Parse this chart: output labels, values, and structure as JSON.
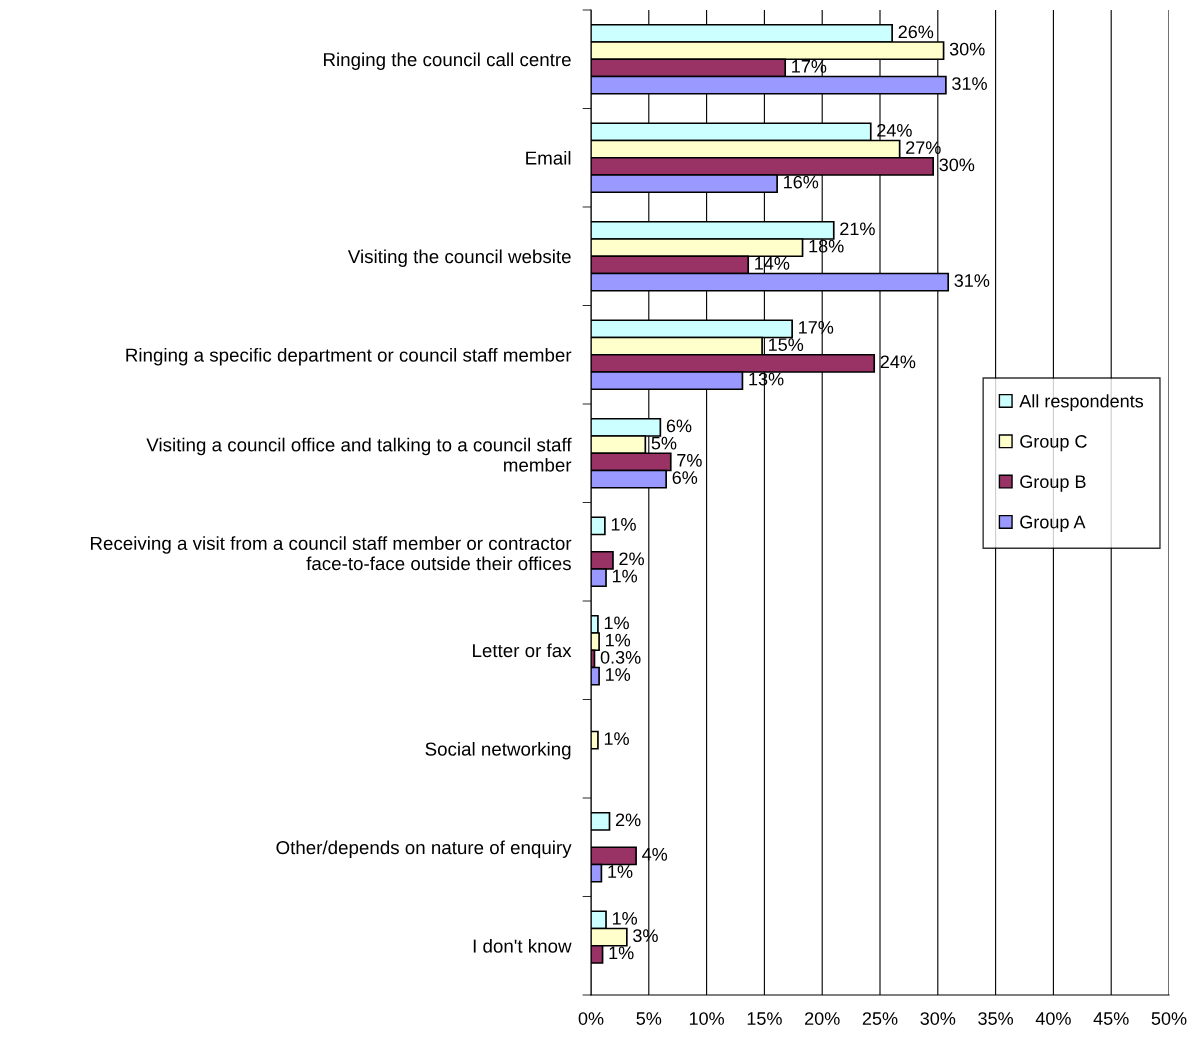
{
  "chart_data": {
    "type": "bar",
    "orientation": "horizontal",
    "categories": [
      "Ringing the council call centre",
      "Email",
      "Visiting the council website",
      "Ringing a specific department or council staff member",
      "Visiting a council office and talking to a council staff\nmember",
      "Receiving a visit from a council staff member or contractor\nface-to-face outside their offices",
      "Letter or fax",
      "Social networking",
      "Other/depends on nature of enquiry",
      "I don't know"
    ],
    "series": [
      {
        "name": "All respondents",
        "color": "#ccffff",
        "values": [
          26.05,
          24.2,
          21.0,
          17.4,
          6.0,
          1.2,
          0.6,
          null,
          1.6,
          1.3
        ],
        "value_labels": [
          "26%",
          "24%",
          "21%",
          "17%",
          "6%",
          "1%",
          "1%",
          null,
          "2%",
          "1%"
        ]
      },
      {
        "name": "Group C",
        "color": "#ffffcc",
        "values": [
          30.5,
          26.7,
          18.3,
          14.8,
          4.7,
          null,
          0.7,
          0.6,
          null,
          3.1
        ],
        "value_labels": [
          "30%",
          "27%",
          "18%",
          "15%",
          "5%",
          null,
          "1%",
          "1%",
          null,
          "3%"
        ]
      },
      {
        "name": "Group B",
        "color": "#993366",
        "values": [
          16.8,
          29.6,
          13.6,
          24.5,
          6.9,
          1.9,
          0.3,
          null,
          3.9,
          1.0
        ],
        "value_labels": [
          "17%",
          "30%",
          "14%",
          "24%",
          "7%",
          "2%",
          "0.3%",
          null,
          "4%",
          "1%"
        ]
      },
      {
        "name": "Group A",
        "color": "#9999ff",
        "values": [
          30.7,
          16.1,
          30.9,
          13.1,
          6.5,
          1.3,
          0.7,
          null,
          0.9,
          null
        ],
        "value_labels": [
          "31%",
          "16%",
          "31%",
          "13%",
          "6%",
          "1%",
          "1%",
          null,
          "1%",
          null
        ]
      }
    ],
    "xlim": [
      0,
      50
    ],
    "xticks": [
      {
        "value": 0,
        "label": "0%"
      },
      {
        "value": 5,
        "label": "5%"
      },
      {
        "value": 10,
        "label": "10%"
      },
      {
        "value": 15,
        "label": "15%"
      },
      {
        "value": 20,
        "label": "20%"
      },
      {
        "value": 25,
        "label": "25%"
      },
      {
        "value": 30,
        "label": "30%"
      },
      {
        "value": 35,
        "label": "35%"
      },
      {
        "value": 40,
        "label": "40%"
      },
      {
        "value": 45,
        "label": "45%"
      },
      {
        "value": 50,
        "label": "50%"
      }
    ],
    "grid": "x",
    "legend": "right"
  }
}
